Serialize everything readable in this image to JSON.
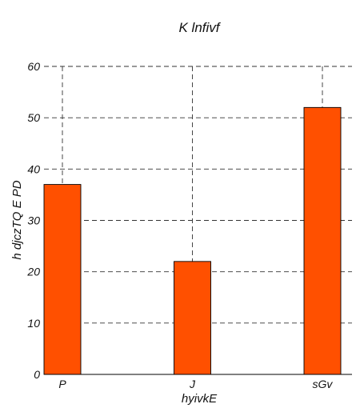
{
  "chart_data": {
    "type": "bar",
    "title": "K lnfivf",
    "xlabel": "hyivkE",
    "ylabel": "h djczTQ E PD",
    "categories": [
      "P",
      "J",
      "sGv"
    ],
    "values": [
      37,
      22,
      52
    ],
    "ylim": [
      0,
      60
    ],
    "yticks": [
      "0",
      "10",
      "20",
      "30",
      "40",
      "50",
      "60"
    ],
    "grid": true,
    "bar_color": "#ff5000",
    "edge_color": "#000000"
  }
}
